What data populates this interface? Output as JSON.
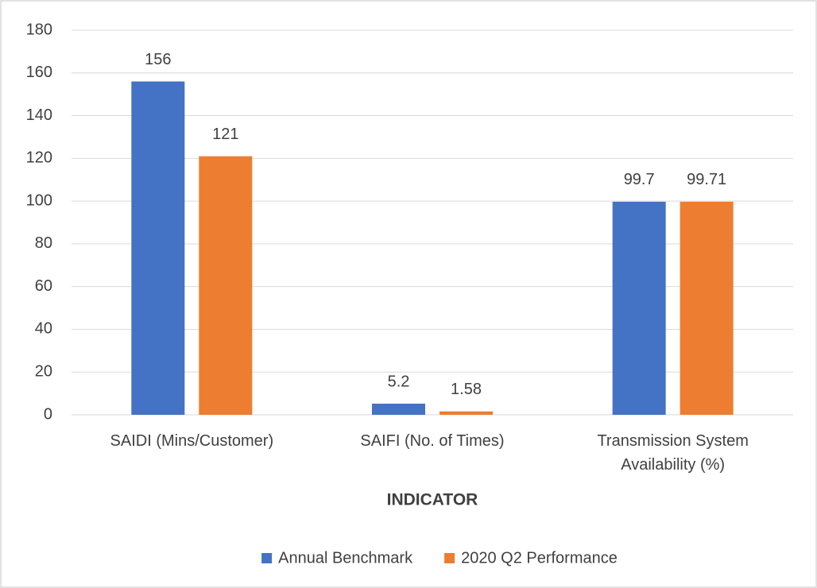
{
  "chart_data": {
    "type": "bar",
    "categories": [
      "SAIDI (Mins/Customer)",
      "SAIFI (No. of Times)",
      "Transmission System Availability (%)"
    ],
    "series": [
      {
        "name": "Annual Benchmark",
        "color": "#4472c4",
        "values": [
          156,
          5.2,
          99.7
        ]
      },
      {
        "name": "2020 Q2 Performance",
        "color": "#ed7d31",
        "values": [
          121,
          1.58,
          99.71
        ]
      }
    ],
    "xlabel": "INDICATOR",
    "ylim": [
      0,
      180
    ],
    "yticks": [
      0,
      20,
      40,
      60,
      80,
      100,
      120,
      140,
      160,
      180
    ],
    "grid": true,
    "legend": "bottom"
  }
}
